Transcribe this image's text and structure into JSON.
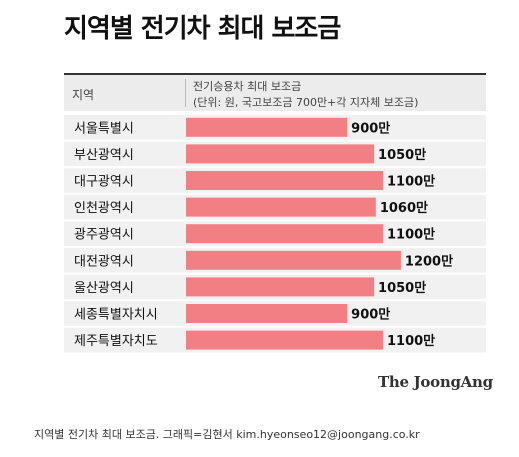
{
  "chart_data": {
    "type": "bar",
    "orientation": "horizontal",
    "title": "지역별 전기차 최대 보조금",
    "header": {
      "category_label": "지역",
      "value_label_line1": "전기승용차 최대 보조금",
      "value_label_line2": "(단위: 원, 국고보조금 700만+각 지자체 보조금)"
    },
    "categories": [
      "서울특별시",
      "부산광역시",
      "대구광역시",
      "인천광역시",
      "광주광역시",
      "대전광역시",
      "울산광역시",
      "세종특별자치시",
      "제주특별자치도"
    ],
    "values": [
      900,
      1050,
      1100,
      1060,
      1100,
      1200,
      1050,
      900,
      1100
    ],
    "value_labels": [
      "900만",
      "1050만",
      "1100만",
      "1060만",
      "1100만",
      "1200만",
      "1050만",
      "900만",
      "1100만"
    ],
    "bar_color": "#f27f84",
    "grid": false,
    "legend": "none"
  },
  "brand": "The JoongAng",
  "caption": "지역별 전기차 최대 보조금. 그래픽=김현서 kim.hyeonseo12@joongang.co.kr"
}
